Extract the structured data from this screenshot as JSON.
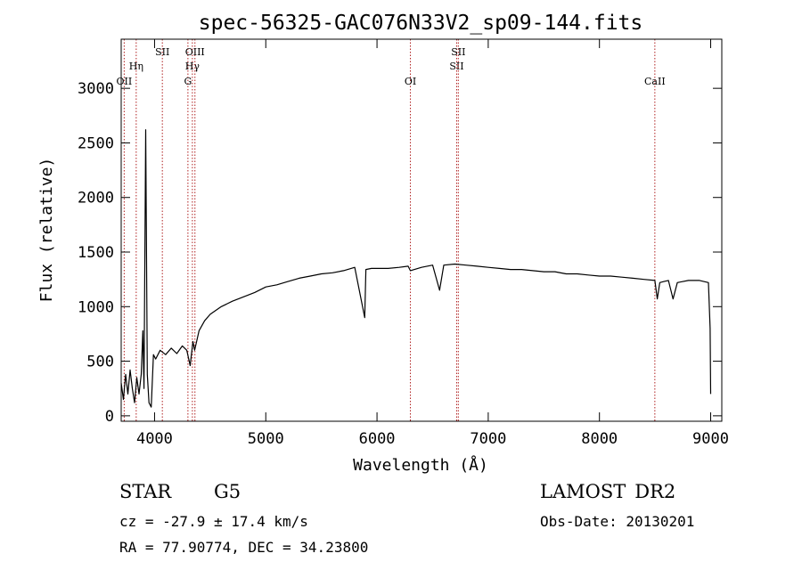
{
  "chart_data": {
    "type": "line",
    "title": "spec-56325-GAC076N33V2_sp09-144.fits",
    "xlabel": "Wavelength (Å)",
    "ylabel": "Flux (relative)",
    "xlim": [
      3700,
      9100
    ],
    "ylim": [
      -50,
      3450
    ],
    "x_ticks": [
      4000,
      5000,
      6000,
      7000,
      8000,
      9000
    ],
    "y_ticks": [
      0,
      500,
      1000,
      1500,
      2000,
      2500,
      3000
    ],
    "grid": false,
    "series": [
      {
        "color": "#000000",
        "x": [
          3700,
          3720,
          3740,
          3760,
          3780,
          3800,
          3820,
          3840,
          3860,
          3880,
          3895,
          3905,
          3920,
          3935,
          3950,
          3970,
          3990,
          4010,
          4050,
          4100,
          4150,
          4200,
          4250,
          4290,
          4320,
          4345,
          4360,
          4400,
          4450,
          4500,
          4600,
          4700,
          4800,
          4900,
          5000,
          5100,
          5200,
          5300,
          5400,
          5500,
          5600,
          5700,
          5800,
          5890,
          5900,
          5950,
          6000,
          6100,
          6200,
          6280,
          6300,
          6400,
          6500,
          6563,
          6600,
          6700,
          6800,
          6900,
          7000,
          7100,
          7200,
          7300,
          7400,
          7500,
          7600,
          7700,
          7800,
          7900,
          8000,
          8100,
          8200,
          8300,
          8400,
          8498,
          8520,
          8542,
          8580,
          8620,
          8662,
          8700,
          8800,
          8900,
          8980,
          8995,
          9000
        ],
        "values": [
          300,
          150,
          380,
          200,
          420,
          250,
          120,
          350,
          200,
          380,
          780,
          250,
          2620,
          380,
          120,
          80,
          560,
          520,
          600,
          560,
          620,
          570,
          640,
          600,
          460,
          680,
          600,
          780,
          870,
          930,
          1000,
          1050,
          1090,
          1130,
          1180,
          1200,
          1230,
          1260,
          1280,
          1300,
          1310,
          1330,
          1360,
          900,
          1340,
          1350,
          1350,
          1350,
          1360,
          1370,
          1330,
          1360,
          1380,
          1150,
          1380,
          1390,
          1380,
          1370,
          1360,
          1350,
          1340,
          1340,
          1330,
          1320,
          1320,
          1300,
          1300,
          1290,
          1280,
          1280,
          1270,
          1260,
          1250,
          1240,
          1070,
          1220,
          1230,
          1240,
          1070,
          1220,
          1240,
          1240,
          1220,
          800,
          200
        ]
      }
    ],
    "lines": [
      {
        "x": 3727,
        "label": "OII",
        "row": 3
      },
      {
        "x": 3835,
        "label": "Hη",
        "row": 2
      },
      {
        "x": 4070,
        "label": "SII",
        "row": 1
      },
      {
        "x": 4300,
        "label": "G",
        "row": 3
      },
      {
        "x": 4340,
        "label": "Hγ",
        "row": 2
      },
      {
        "x": 4363,
        "label": "OIII",
        "row": 1
      },
      {
        "x": 6300,
        "label": "OI",
        "row": 3
      },
      {
        "x": 6716,
        "label": "SII",
        "row": 2
      },
      {
        "x": 6731,
        "label": "SII",
        "row": 1
      },
      {
        "x": 8498,
        "label": "CaII",
        "row": 3
      }
    ]
  },
  "info": {
    "class_label": "STAR",
    "subclass": "G5",
    "survey": "LAMOST",
    "release": "DR2",
    "cz": "cz = -27.9 ± 17.4 km/s",
    "obsdate": "Obs-Date: 20130201",
    "radec": "RA =  77.90774, DEC =  34.23800"
  }
}
